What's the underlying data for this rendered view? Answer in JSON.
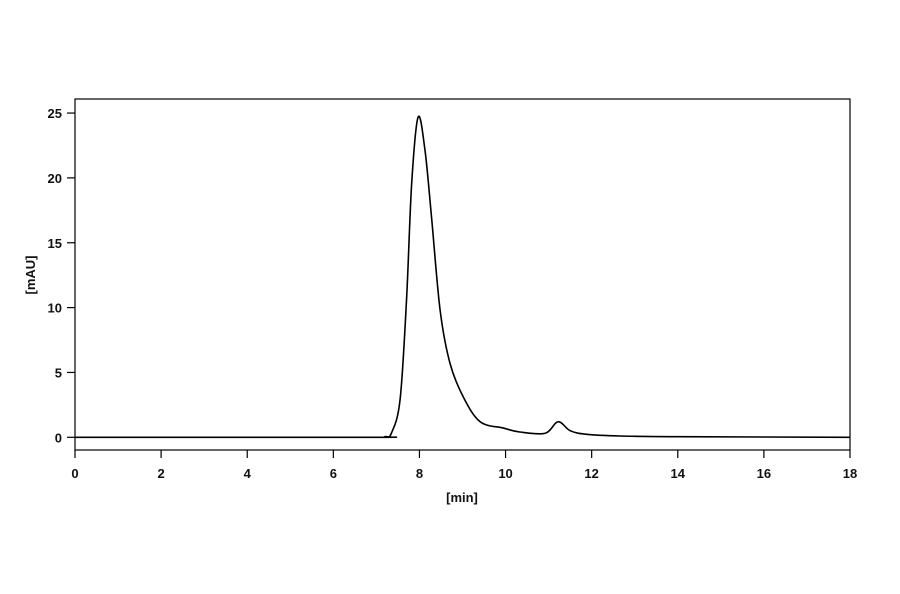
{
  "chart_data": {
    "type": "line",
    "title": "",
    "xlabel": "[min]",
    "ylabel": "[mAU]",
    "xlim": [
      0,
      18
    ],
    "ylim": [
      -1,
      26
    ],
    "xticks": [
      0,
      2,
      4,
      6,
      8,
      10,
      12,
      14,
      16,
      18
    ],
    "yticks": [
      0,
      5,
      10,
      15,
      20,
      25
    ],
    "grid": false,
    "legend": "none",
    "line_color": "#000000",
    "series": [
      {
        "x": [
          0,
          6.85,
          7.2,
          7.35,
          7.55,
          7.7,
          7.82,
          7.97,
          8.13,
          8.28,
          8.48,
          8.71,
          9.02,
          9.41,
          9.94,
          10.33,
          10.92,
          11.22,
          11.5,
          11.88,
          12.66,
          14,
          18
        ],
        "y": [
          0,
          0,
          0.05,
          0.33,
          2.9,
          10.6,
          19.6,
          24.7,
          22.1,
          17.0,
          9.8,
          5.7,
          3.1,
          1.2,
          0.72,
          0.41,
          0.31,
          1.2,
          0.51,
          0.23,
          0.1,
          0.05,
          0
        ]
      }
    ]
  }
}
